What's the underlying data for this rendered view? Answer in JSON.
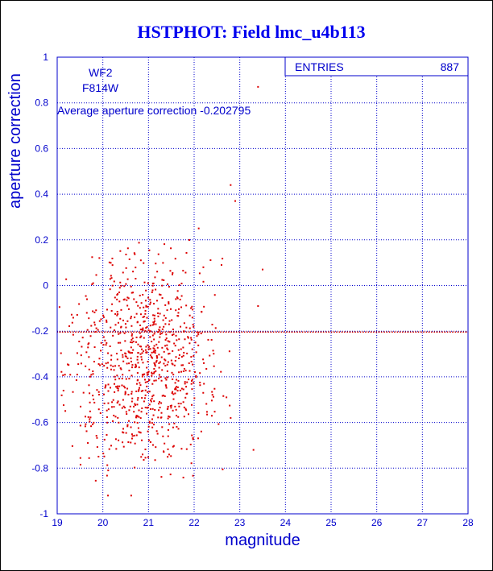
{
  "title": "HSTPHOT: Field lmc_u4b113",
  "colors": {
    "axis": "#0000cc",
    "points": "#dd0000",
    "title": "#0000ee",
    "background": "#ffffff"
  },
  "labels": {
    "chip": "WF2",
    "filter": "F814W",
    "average": "Average aperture correction -0.202795",
    "entries_label": "ENTRIES",
    "entries_value": "887"
  },
  "chart_data": {
    "type": "scatter",
    "title": "HSTPHOT: Field lmc_u4b113",
    "xlabel": "magnitude",
    "ylabel": "aperture correction",
    "xlim": [
      19,
      28
    ],
    "ylim": [
      -1,
      1
    ],
    "xticks": [
      "19",
      "20",
      "21",
      "22",
      "23",
      "24",
      "25",
      "26",
      "27",
      "28"
    ],
    "yticks": [
      "-1",
      "-0.8",
      "-0.6",
      "-0.4",
      "-0.2",
      "0",
      "0.2",
      "0.4",
      "0.6",
      "0.8",
      "1"
    ],
    "grid": true,
    "average_line_y": -0.202795,
    "entries": 887,
    "points_outliers": [
      [
        23.4,
        0.87
      ],
      [
        22.8,
        0.44
      ],
      [
        22.9,
        0.37
      ],
      [
        23.5,
        0.07
      ],
      [
        23.4,
        -0.09
      ],
      [
        23.3,
        -0.72
      ],
      [
        22.6,
        0.09
      ],
      [
        22.1,
        0.25
      ],
      [
        22.8,
        -0.58
      ]
    ],
    "cluster": {
      "x_range": [
        19,
        23.1
      ],
      "y_range": [
        -1,
        0.2
      ],
      "center": [
        20.9,
        -0.32
      ],
      "density_note": "dense cloud of 887 points"
    }
  }
}
